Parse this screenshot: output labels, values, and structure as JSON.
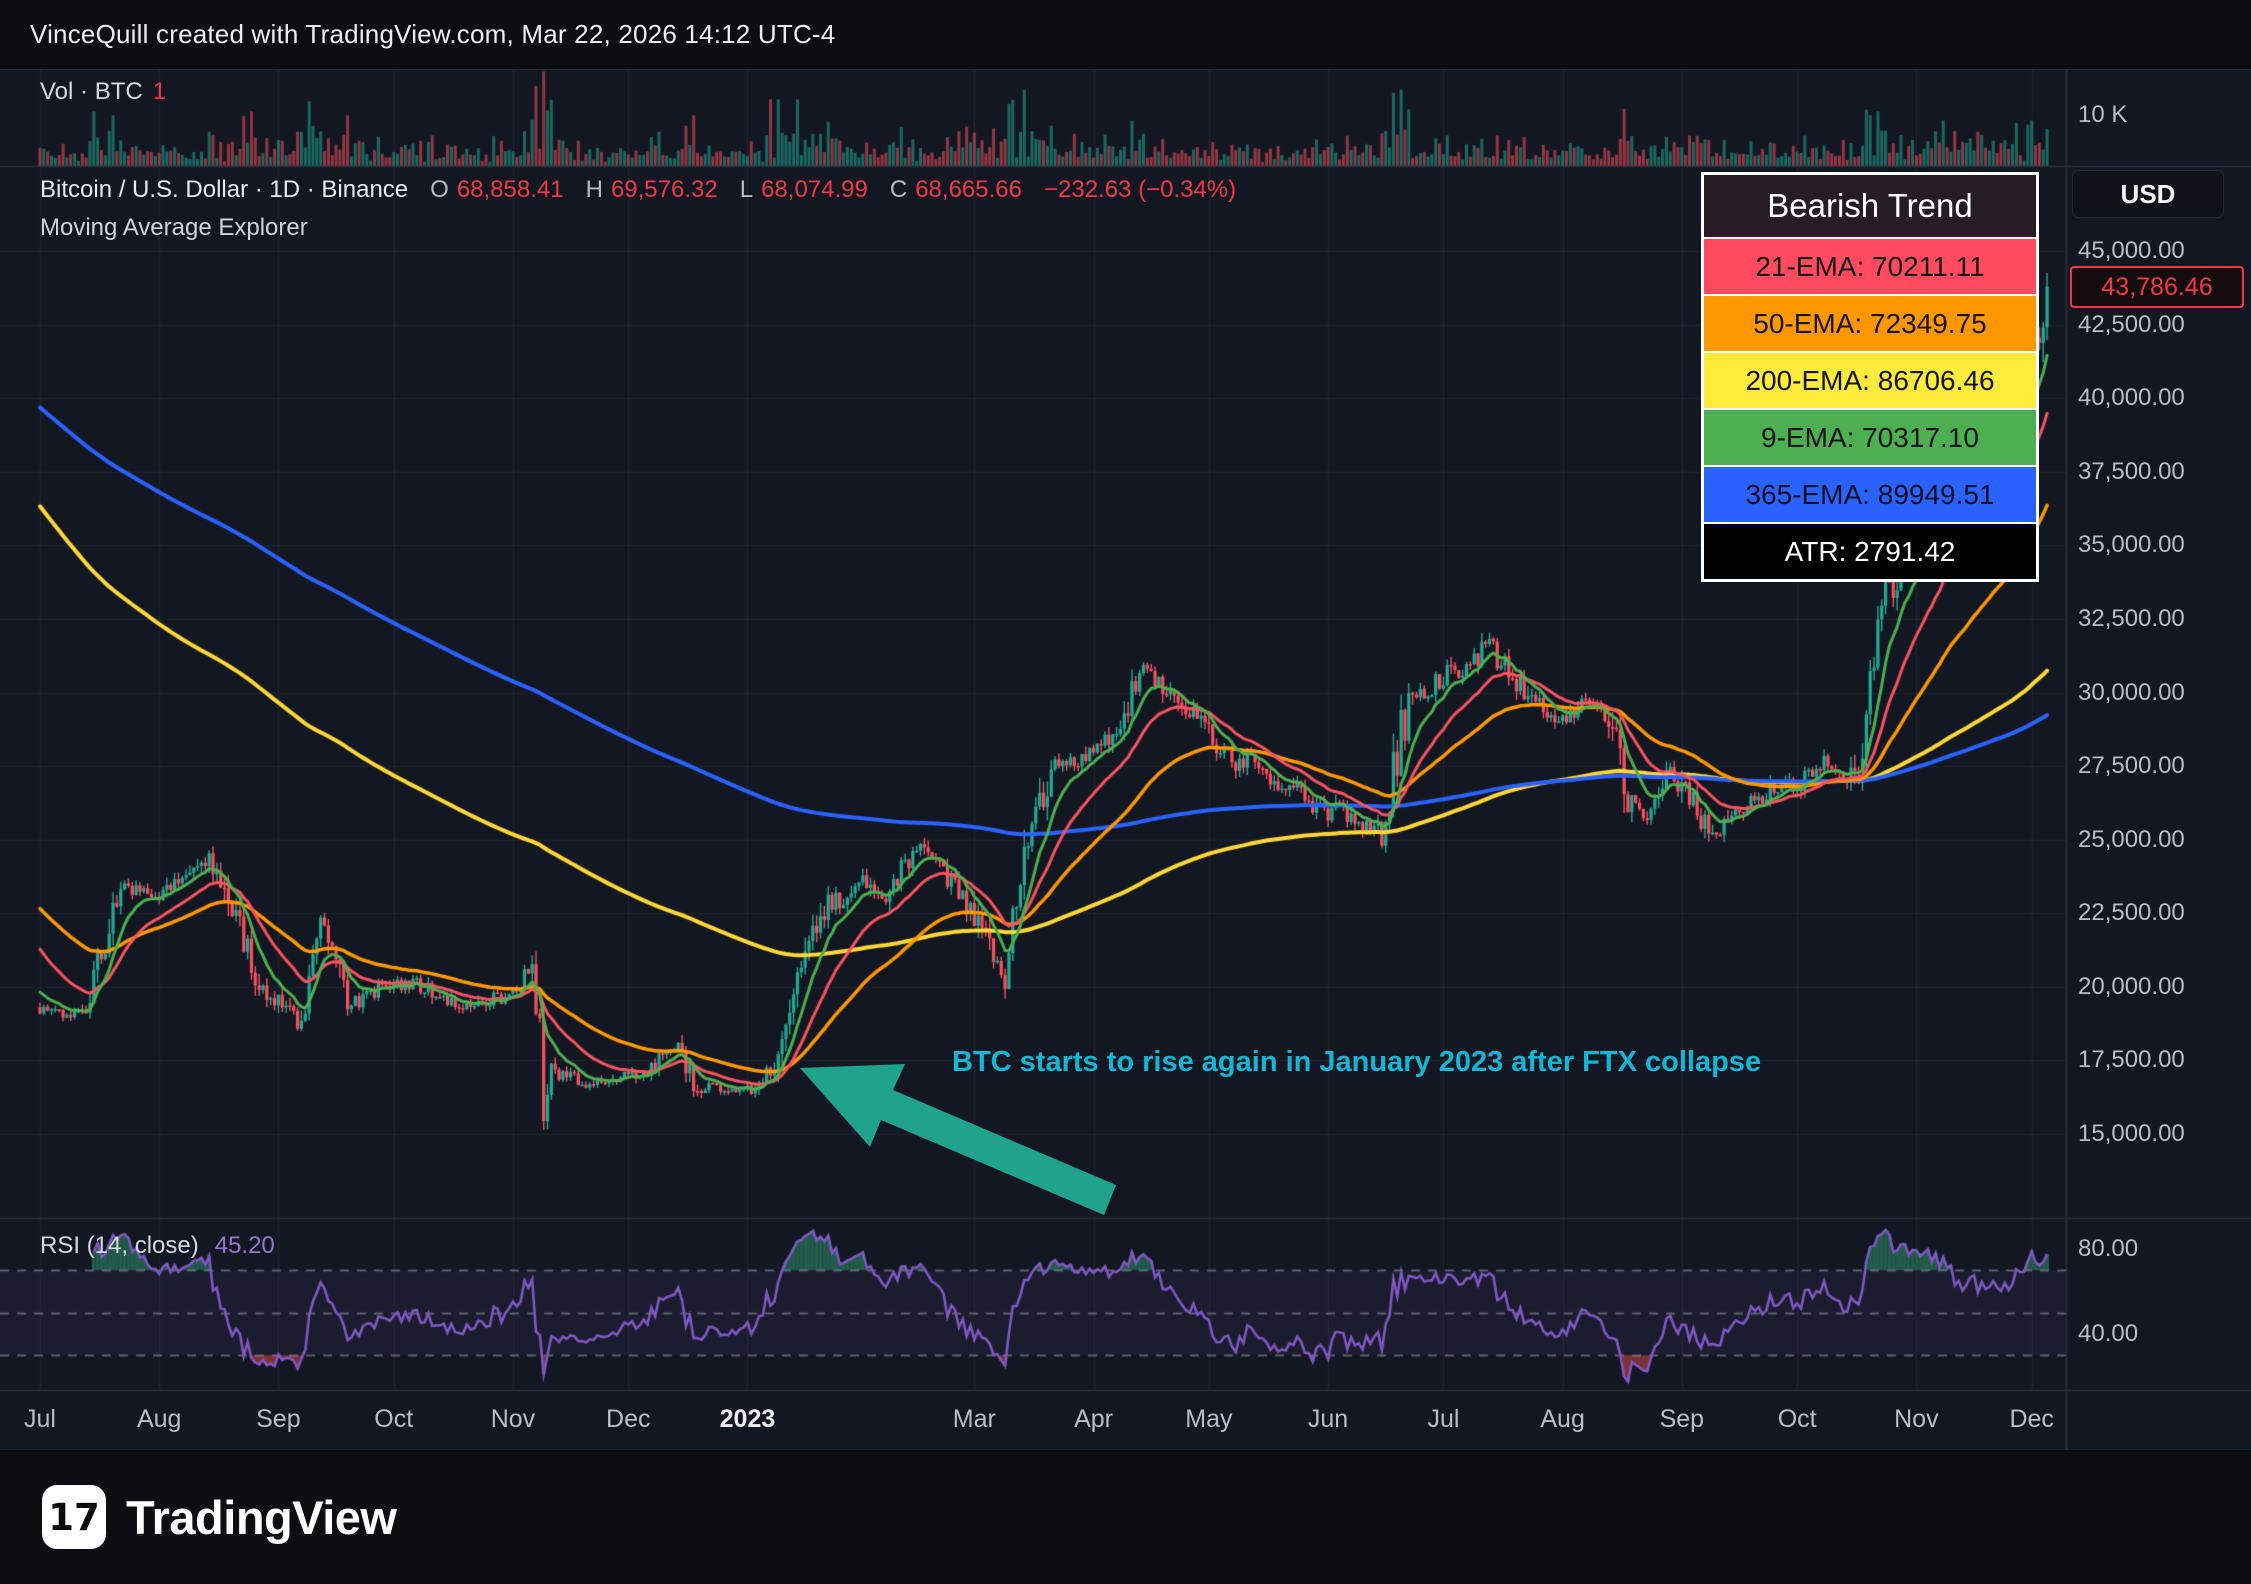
{
  "header": {
    "attribution": "VinceQuill created with TradingView.com, Mar 22, 2026 14:12 UTC-4"
  },
  "colors": {
    "background": "#131722",
    "chrome": "#0d0e12",
    "grid": "rgba(255,255,255,0.05)",
    "divider": "#2a2e39",
    "up": "#22ab94",
    "down": "#f7525f",
    "volume_up": "rgba(34,171,148,0.55)",
    "volume_down": "rgba(247,82,95,0.55)",
    "rsi_line": "#7e57c2",
    "rsi_band_fill": "rgba(126,87,194,0.08)",
    "rsi_guide": "rgba(160,163,175,0.5)",
    "rsi_overbought_fill": "rgba(40,110,85,0.8)",
    "rsi_oversold_fill": "rgba(200,70,70,0.6)",
    "accent_red": "#f23645",
    "arrow": "#1fa38b",
    "annotation": "#12b7d6"
  },
  "volume_pane": {
    "label": "Vol · BTC",
    "value": "1",
    "axis_tick": "10 K"
  },
  "main_pane": {
    "symbol_line": {
      "symbol": "Bitcoin / U.S. Dollar · 1D · Binance",
      "o_label": "O",
      "o": "68,858.41",
      "h_label": "H",
      "h": "69,576.32",
      "l_label": "L",
      "l": "68,074.99",
      "c_label": "C",
      "c": "68,665.66",
      "change": "−232.63 (−0.34%)"
    },
    "indicator_label": "Moving Average Explorer",
    "price_badge": "43,786.46",
    "usd_button": "USD"
  },
  "legend": {
    "title": "Bearish Trend",
    "rows": [
      {
        "text": "21-EMA: 70211.11",
        "bg": "#ff4a5f",
        "fg": "#141414"
      },
      {
        "text": "50-EMA: 72349.75",
        "bg": "#ff9800",
        "fg": "#141414"
      },
      {
        "text": "200-EMA: 86706.46",
        "bg": "#ffeb3b",
        "fg": "#141414"
      },
      {
        "text": "9-EMA: 70317.10",
        "bg": "#4caf50",
        "fg": "#141414"
      },
      {
        "text": "365-EMA: 89949.51",
        "bg": "#2962ff",
        "fg": "#0b1020"
      },
      {
        "text": "ATR: 2791.42",
        "bg": "#000000",
        "fg": "#ffffff"
      }
    ]
  },
  "annotation": {
    "text": "BTC starts to rise again in January 2023 after FTX collapse"
  },
  "rsi_pane": {
    "label": "RSI (14, close)",
    "value": "45.20"
  },
  "price_axis": {
    "ticks": [
      {
        "label": "45,000.00",
        "value": 45000
      },
      {
        "label": "42,500.00",
        "value": 42500
      },
      {
        "label": "40,000.00",
        "value": 40000
      },
      {
        "label": "37,500.00",
        "value": 37500
      },
      {
        "label": "35,000.00",
        "value": 35000
      },
      {
        "label": "32,500.00",
        "value": 32500
      },
      {
        "label": "30,000.00",
        "value": 30000
      },
      {
        "label": "27,500.00",
        "value": 27500
      },
      {
        "label": "25,000.00",
        "value": 25000
      },
      {
        "label": "22,500.00",
        "value": 22500
      },
      {
        "label": "20,000.00",
        "value": 20000
      },
      {
        "label": "17,500.00",
        "value": 17500
      },
      {
        "label": "15,000.00",
        "value": 15000
      }
    ]
  },
  "rsi_axis": {
    "ticks": [
      {
        "label": "80.00",
        "value": 80
      },
      {
        "label": "40.00",
        "value": 40
      }
    ]
  },
  "time_axis": {
    "ticks": [
      {
        "label": "Jul",
        "day": 0
      },
      {
        "label": "Aug",
        "day": 31
      },
      {
        "label": "Sep",
        "day": 62
      },
      {
        "label": "Oct",
        "day": 92
      },
      {
        "label": "Nov",
        "day": 123
      },
      {
        "label": "Dec",
        "day": 153
      },
      {
        "label": "2023",
        "day": 184,
        "strong": true
      },
      {
        "label": "Mar",
        "day": 243
      },
      {
        "label": "Apr",
        "day": 274
      },
      {
        "label": "May",
        "day": 304
      },
      {
        "label": "Jun",
        "day": 335
      },
      {
        "label": "Jul",
        "day": 365
      },
      {
        "label": "Aug",
        "day": 396
      },
      {
        "label": "Sep",
        "day": 427
      },
      {
        "label": "Oct",
        "day": 457
      },
      {
        "label": "Nov",
        "day": 488
      },
      {
        "label": "Dec",
        "day": 518
      }
    ]
  },
  "footer": {
    "brand": "TradingView",
    "logo_glyph": "17"
  },
  "chart_data": {
    "type": "candlestick",
    "title": "Bitcoin / U.S. Dollar · 1D · Binance",
    "x_axis": "Daily, Jul 2022 – Dec 2023 (day index from Jul 1 2022)",
    "y_range": [
      15000,
      45000
    ],
    "last_price": 43786.46,
    "price_anchors": [
      [
        0,
        19300
      ],
      [
        12,
        19050
      ],
      [
        20,
        23200
      ],
      [
        31,
        23300
      ],
      [
        44,
        24400
      ],
      [
        58,
        20050
      ],
      [
        68,
        18800
      ],
      [
        73,
        22100
      ],
      [
        80,
        19400
      ],
      [
        95,
        20300
      ],
      [
        110,
        19150
      ],
      [
        125,
        20150
      ],
      [
        128,
        20900
      ],
      [
        130,
        18500
      ],
      [
        131,
        15900
      ],
      [
        133,
        17000
      ],
      [
        141,
        16700
      ],
      [
        155,
        17050
      ],
      [
        166,
        17800
      ],
      [
        171,
        16550
      ],
      [
        183,
        16550
      ],
      [
        190,
        16950
      ],
      [
        197,
        19950
      ],
      [
        204,
        22700
      ],
      [
        213,
        23750
      ],
      [
        219,
        22900
      ],
      [
        229,
        24600
      ],
      [
        240,
        23200
      ],
      [
        251,
        20200
      ],
      [
        256,
        24700
      ],
      [
        264,
        27450
      ],
      [
        276,
        28200
      ],
      [
        287,
        30450
      ],
      [
        300,
        29250
      ],
      [
        311,
        27650
      ],
      [
        325,
        26800
      ],
      [
        340,
        25750
      ],
      [
        349,
        25100
      ],
      [
        356,
        29950
      ],
      [
        364,
        30450
      ],
      [
        377,
        31300
      ],
      [
        392,
        29300
      ],
      [
        408,
        29400
      ],
      [
        413,
        26050
      ],
      [
        419,
        26000
      ],
      [
        424,
        27400
      ],
      [
        432,
        25800
      ],
      [
        437,
        25150
      ],
      [
        445,
        26550
      ],
      [
        456,
        26950
      ],
      [
        462,
        27450
      ],
      [
        470,
        26850
      ],
      [
        474,
        28300
      ],
      [
        476,
        30100
      ],
      [
        479,
        33100
      ],
      [
        483,
        34200
      ],
      [
        487,
        34650
      ],
      [
        492,
        35100
      ],
      [
        496,
        36700
      ],
      [
        500,
        35600
      ],
      [
        507,
        37400
      ],
      [
        512,
        37800
      ],
      [
        516,
        40300
      ],
      [
        519,
        42300
      ],
      [
        522,
        43786.46
      ]
    ],
    "emas": [
      {
        "name": "9-EMA",
        "period": 9,
        "color": "#4caf50",
        "width": 3,
        "init": 20000
      },
      {
        "name": "21-EMA",
        "period": 21,
        "color": "#f7525f",
        "width": 3,
        "init": 21500
      },
      {
        "name": "50-EMA",
        "period": 50,
        "color": "#ff9800",
        "width": 3.5,
        "init": 22800
      },
      {
        "name": "200-EMA",
        "period": 200,
        "color": "#fdd835",
        "width": 4,
        "init": 36500
      },
      {
        "name": "365-EMA",
        "period": 365,
        "color": "#2962ff",
        "width": 4,
        "init": 39800
      }
    ],
    "rsi": {
      "period": 14,
      "guides": [
        70,
        50,
        30
      ],
      "shown_value": 45.2
    },
    "volume": {
      "unit": "K",
      "axis_label": "10 K",
      "max": 18.5,
      "spikes": [
        {
          "day": 128,
          "add": 5
        },
        {
          "day": 131,
          "add": 7
        },
        {
          "day": 190,
          "add": 9
        },
        {
          "day": 192,
          "add": 6
        },
        {
          "day": 197,
          "add": 5
        },
        {
          "day": 256,
          "add": 4
        },
        {
          "day": 287,
          "add": 3
        },
        {
          "day": 479,
          "add": 3
        },
        {
          "day": 520,
          "add": 3
        }
      ]
    }
  }
}
